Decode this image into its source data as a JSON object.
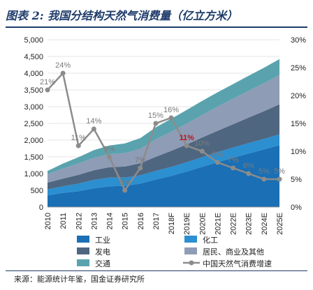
{
  "header": {
    "title": "图表 2:  我国分结构天然气消费量（亿立方米）"
  },
  "footer": {
    "source": "来源：能源统计年鉴，国金证券研究所"
  },
  "colors": {
    "industry": "#1a6fb5",
    "chemical": "#2b8fd0",
    "power": "#4f6680",
    "residential": "#8f9cb5",
    "transport": "#5aa3ae",
    "growth_line": "#8c8c8c"
  },
  "chart_data": {
    "type": "area",
    "categories": [
      "2010",
      "2011",
      "2012",
      "2013",
      "2014",
      "2015",
      "2016",
      "2017",
      "2018F",
      "2019E",
      "2020E",
      "2021E",
      "2022E",
      "2023E",
      "2024E",
      "2025E"
    ],
    "y_left": {
      "min": 0,
      "max": 5000,
      "ticks": [
        "0",
        "500",
        "1,000",
        "1,500",
        "2,000",
        "2,500",
        "3,000",
        "3,500",
        "4,000",
        "4,500",
        "5,000"
      ]
    },
    "y_right": {
      "min": 0,
      "max": 30,
      "ticks": [
        "0%",
        "5%",
        "10%",
        "15%",
        "20%",
        "25%",
        "30%"
      ]
    },
    "stacked_series": [
      {
        "name": "工业",
        "color_key": "industry",
        "values": [
          350,
          420,
          470,
          560,
          620,
          630,
          700,
          820,
          930,
          1060,
          1200,
          1340,
          1470,
          1600,
          1720,
          1850
        ]
      },
      {
        "name": "化工",
        "color_key": "chemical",
        "values": [
          180,
          200,
          230,
          250,
          260,
          250,
          250,
          260,
          270,
          280,
          290,
          300,
          305,
          310,
          315,
          320
        ]
      },
      {
        "name": "发电",
        "color_key": "power",
        "values": [
          200,
          230,
          260,
          290,
          310,
          330,
          360,
          420,
          480,
          530,
          590,
          640,
          700,
          760,
          830,
          900
        ]
      },
      {
        "name": "居民、商业及其他",
        "color_key": "residential",
        "values": [
          250,
          300,
          340,
          370,
          390,
          400,
          430,
          520,
          570,
          620,
          670,
          720,
          760,
          800,
          840,
          880
        ]
      },
      {
        "name": "交通",
        "color_key": "transport",
        "values": [
          100,
          150,
          190,
          230,
          260,
          290,
          320,
          360,
          390,
          410,
          420,
          430,
          440,
          450,
          460,
          470
        ]
      }
    ],
    "line_series": {
      "name": "中国天然气消费增速",
      "color_key": "growth_line",
      "values": [
        21,
        24,
        11,
        14,
        9,
        3,
        7,
        15,
        16,
        11,
        10,
        8,
        7,
        6,
        5,
        5
      ],
      "labels": [
        "21%",
        "24%",
        "11%",
        "14%",
        "9%",
        "3%",
        "7%",
        "15%",
        "16%",
        "11%",
        "10%",
        "8%",
        "7%",
        "6%",
        "5%",
        "5%"
      ],
      "highlight_index": 9,
      "highlight_color": "#c0141b"
    },
    "legend": [
      {
        "label": "工业",
        "color_key": "industry",
        "kind": "box"
      },
      {
        "label": "化工",
        "color_key": "chemical",
        "kind": "box"
      },
      {
        "label": "发电",
        "color_key": "power",
        "kind": "box"
      },
      {
        "label": "居民、商业及其他",
        "color_key": "residential",
        "kind": "box"
      },
      {
        "label": "交通",
        "color_key": "transport",
        "kind": "box"
      },
      {
        "label": "中国天然气消费增速",
        "color_key": "growth_line",
        "kind": "line"
      }
    ]
  }
}
